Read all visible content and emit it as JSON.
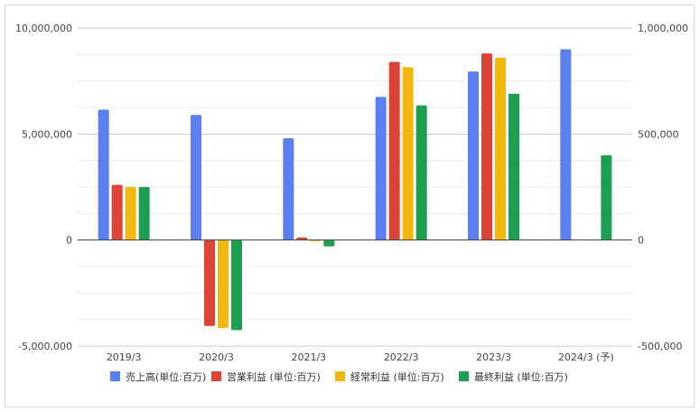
{
  "chart_data": {
    "type": "bar",
    "categories": [
      "2019/3",
      "2020/3",
      "2021/3",
      "2022/3",
      "2023/3",
      "2024/3 (予)"
    ],
    "series": [
      {
        "name": "売上高(単位:百万)",
        "axis": "left",
        "color": "#5b7ff0",
        "values": [
          6150000,
          5900000,
          4800000,
          6750000,
          7950000,
          9000000
        ]
      },
      {
        "name": "営業利益 (単位:百万)",
        "axis": "right",
        "color": "#dc4437",
        "values": [
          260000,
          -405000,
          12000,
          840000,
          880000,
          null
        ]
      },
      {
        "name": "経常利益 (単位:百万)",
        "axis": "right",
        "color": "#f1b80f",
        "values": [
          250000,
          -415000,
          -5000,
          815000,
          860000,
          null
        ]
      },
      {
        "name": "最終利益 (単位:百万)",
        "axis": "right",
        "color": "#1e9e50",
        "values": [
          250000,
          -425000,
          -30000,
          635000,
          690000,
          400000
        ]
      }
    ],
    "ylim_left": [
      -5000000,
      10000000
    ],
    "ylim_right": [
      -500000,
      1000000
    ],
    "left_ticks": [
      "10,000,000",
      "5,000,000",
      "0",
      "-5,000,000"
    ],
    "left_tick_values": [
      10000000,
      5000000,
      0,
      -5000000
    ],
    "right_ticks": [
      "1,000,000",
      "500,000",
      "0",
      "-500,000"
    ],
    "right_tick_values": [
      1000000,
      500000,
      0,
      -500000
    ],
    "grid": true,
    "legend_position": "bottom"
  }
}
